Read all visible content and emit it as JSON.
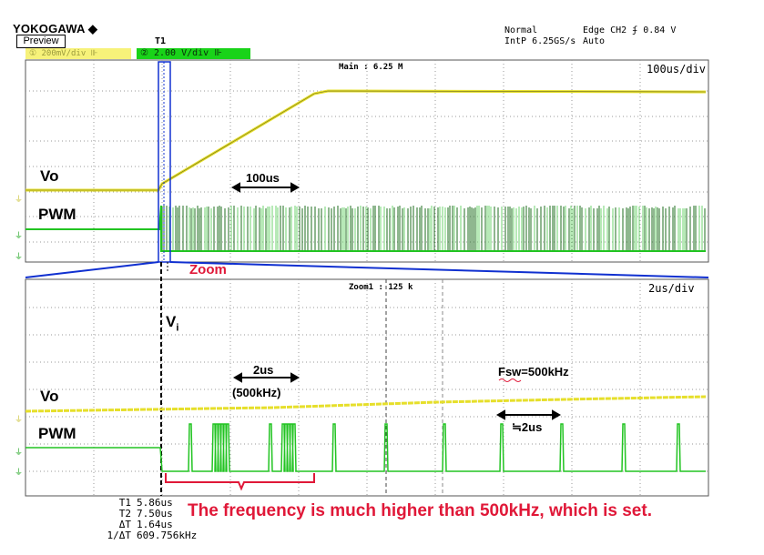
{
  "header": {
    "brand": "YOKOGAWA ◆",
    "preview_label": "Preview",
    "cursor_marker": "T1",
    "mode": "Normal",
    "interp": "IntP 6.25GS/s",
    "trigger": "Edge CH2 ʄ 0.84 V",
    "trigger_mode": "Auto",
    "ch1_scale": "① 200mV/div ⊪",
    "ch2_scale": "② 2.00 V/div ⊪"
  },
  "main_panel": {
    "timebase": "100us/div",
    "record": "Main : 6.25 M",
    "label_vo": "Vo",
    "label_pwm": "PWM",
    "annotation_100us": "100us",
    "zoom_label": "Zoom"
  },
  "zoom_panel": {
    "timebase": "2us/div",
    "record": "Zoom1 : 125 k",
    "label_vi": "V",
    "label_vi_sub": "i",
    "label_vo": "Vo",
    "label_pwm": "PWM",
    "annotation_2us": "2us",
    "annotation_freq": "(500kHz)",
    "fsw_label": "Fsw=500kHz",
    "period_label": "≒2us"
  },
  "measurements": [
    {
      "name": "T1",
      "value": "5.86us"
    },
    {
      "name": "T2",
      "value": "7.50us"
    },
    {
      "name": "ΔT",
      "value": "1.64us"
    },
    {
      "name": "1/ΔT",
      "value": "609.756kHz"
    }
  ],
  "note": "The frequency is much higher than 500kHz, which is set.",
  "colors": {
    "ch1_yellow": "#e6df2a",
    "ch2_green": "#1ea51e",
    "zoom_blue": "#1030d0",
    "annotation_red": "#e01838",
    "grid": "#9a9a9a"
  }
}
